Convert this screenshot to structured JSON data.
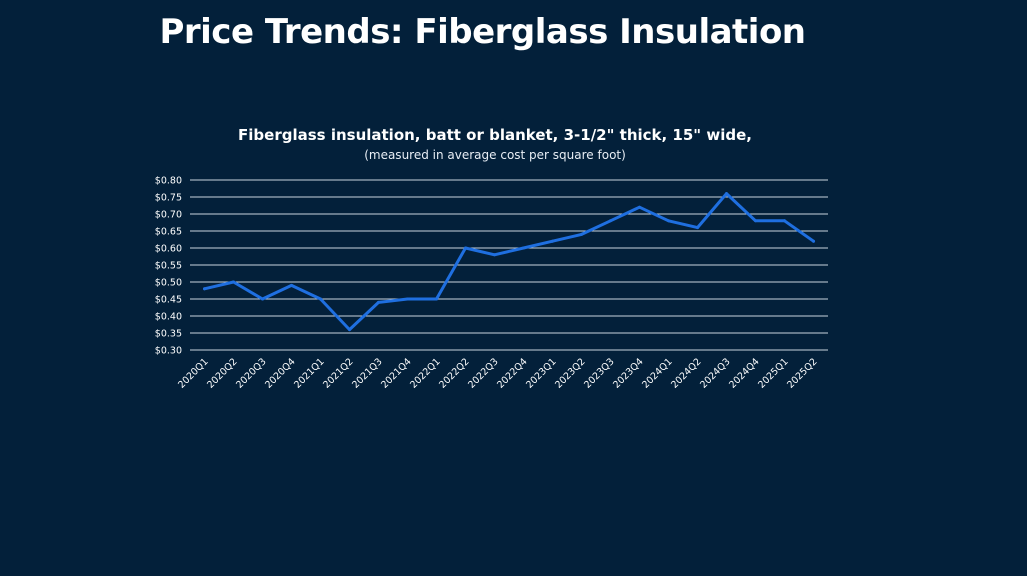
{
  "slide": {
    "title": "Price Trends: Fiberglass Insulation"
  },
  "colors": {
    "background": "#03203a",
    "line": "#1f6fe0",
    "gridline": "#c9d4df"
  },
  "chart_data": {
    "type": "line",
    "title": "Fiberglass insulation, batt or blanket, 3-1/2\" thick, 15\" wide,",
    "subtitle": "(measured in average cost per square foot)",
    "xlabel": "",
    "ylabel": "",
    "ylim": [
      0.3,
      0.8
    ],
    "y_ticks": [
      "$0.30",
      "$0.35",
      "$0.40",
      "$0.45",
      "$0.50",
      "$0.55",
      "$0.60",
      "$0.65",
      "$0.70",
      "$0.75",
      "$0.80"
    ],
    "y_tick_values": [
      0.3,
      0.35,
      0.4,
      0.45,
      0.5,
      0.55,
      0.6,
      0.65,
      0.7,
      0.75,
      0.8
    ],
    "grid": true,
    "legend": "none",
    "categories": [
      "2020Q1",
      "2020Q2",
      "2020Q3",
      "2020Q4",
      "2021Q1",
      "2021Q2",
      "2021Q3",
      "2021Q4",
      "2022Q1",
      "2022Q2",
      "2022Q3",
      "2022Q4",
      "2023Q1",
      "2023Q2",
      "2023Q3",
      "2023Q4",
      "2024Q1",
      "2024Q2",
      "2024Q3",
      "2024Q4",
      "2025Q1",
      "2025Q2"
    ],
    "series": [
      {
        "values": [
          0.48,
          0.5,
          0.45,
          0.49,
          0.45,
          0.36,
          0.44,
          0.45,
          0.45,
          0.6,
          0.58,
          0.6,
          0.62,
          0.64,
          0.68,
          0.72,
          0.68,
          0.66,
          0.76,
          0.68,
          0.68,
          0.62
        ]
      }
    ]
  }
}
